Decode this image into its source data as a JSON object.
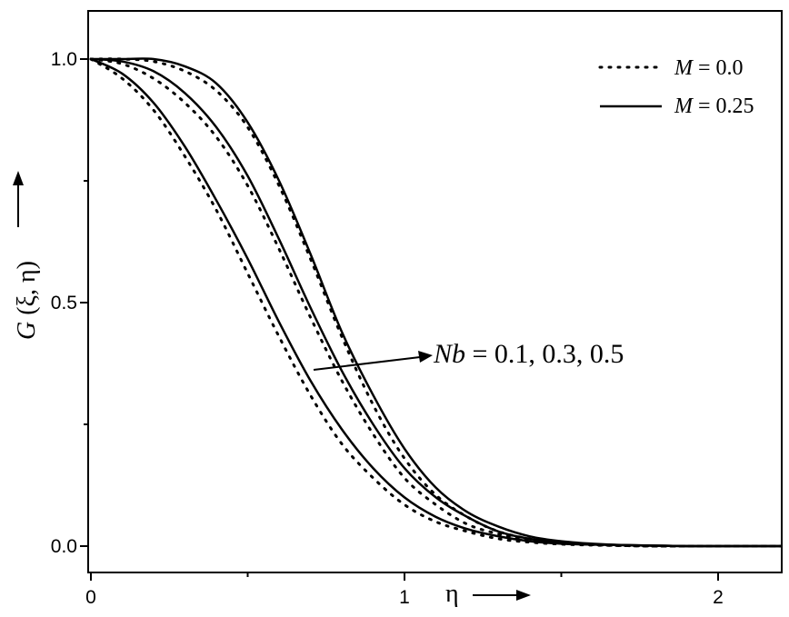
{
  "chart_data": {
    "type": "line",
    "xlabel": "η",
    "ylabel": "G (ξ, η)",
    "xlim": [
      0,
      2.2
    ],
    "ylim": [
      0,
      1.0
    ],
    "x_ticks": [
      {
        "value": 0,
        "label": "0"
      },
      {
        "value": 1,
        "label": "1"
      },
      {
        "value": 2,
        "label": "2"
      }
    ],
    "y_ticks": [
      {
        "value": 0.0,
        "label": "0.0"
      },
      {
        "value": 0.5,
        "label": "0.5"
      },
      {
        "value": 1.0,
        "label": "1.0"
      }
    ],
    "legend_position": "top-right",
    "legend": [
      {
        "label_prefix": "M",
        "label_suffix": " = 0.0",
        "style": "dotted"
      },
      {
        "label_prefix": "M",
        "label_suffix": " = 0.25",
        "style": "solid"
      }
    ],
    "annotation": {
      "prefix": "Nb",
      "suffix": " = 0.1, 0.3, 0.5"
    },
    "x": [
      0,
      0.1,
      0.2,
      0.3,
      0.4,
      0.5,
      0.6,
      0.7,
      0.8,
      0.9,
      1.0,
      1.1,
      1.2,
      1.3,
      1.4,
      1.5,
      1.6,
      1.7,
      1.8,
      1.9,
      2.0,
      2.1,
      2.2
    ],
    "series": [
      {
        "style": "solid",
        "values": [
          1.0,
          0.97,
          0.91,
          0.82,
          0.71,
          0.59,
          0.46,
          0.34,
          0.24,
          0.16,
          0.1,
          0.06,
          0.035,
          0.02,
          0.01,
          0.005,
          0.003,
          0.002,
          0.001,
          0.0,
          0.0,
          0.0,
          0.0
        ]
      },
      {
        "style": "dotted",
        "values": [
          1.0,
          0.96,
          0.895,
          0.8,
          0.69,
          0.56,
          0.43,
          0.31,
          0.21,
          0.14,
          0.085,
          0.05,
          0.03,
          0.015,
          0.008,
          0.004,
          0.002,
          0.001,
          0.0,
          0.0,
          0.0,
          0.0,
          0.0
        ]
      },
      {
        "style": "solid",
        "values": [
          1.0,
          0.995,
          0.975,
          0.93,
          0.86,
          0.76,
          0.63,
          0.49,
          0.36,
          0.25,
          0.16,
          0.1,
          0.06,
          0.03,
          0.015,
          0.008,
          0.004,
          0.002,
          0.001,
          0.0,
          0.0,
          0.0,
          0.0
        ]
      },
      {
        "style": "dotted",
        "values": [
          1.0,
          0.99,
          0.96,
          0.91,
          0.84,
          0.74,
          0.61,
          0.47,
          0.34,
          0.23,
          0.14,
          0.085,
          0.045,
          0.025,
          0.012,
          0.006,
          0.003,
          0.001,
          0.0,
          0.0,
          0.0,
          0.0,
          0.0
        ]
      },
      {
        "style": "solid",
        "values": [
          1.0,
          1.0,
          1.0,
          0.985,
          0.95,
          0.87,
          0.75,
          0.6,
          0.44,
          0.31,
          0.2,
          0.12,
          0.07,
          0.04,
          0.02,
          0.01,
          0.005,
          0.002,
          0.001,
          0.0,
          0.0,
          0.0,
          0.0
        ]
      },
      {
        "style": "dotted",
        "values": [
          1.0,
          1.0,
          0.995,
          0.975,
          0.935,
          0.86,
          0.74,
          0.59,
          0.43,
          0.29,
          0.18,
          0.105,
          0.06,
          0.03,
          0.015,
          0.007,
          0.003,
          0.001,
          0.0,
          0.0,
          0.0,
          0.0,
          0.0
        ]
      }
    ],
    "grid": false
  }
}
